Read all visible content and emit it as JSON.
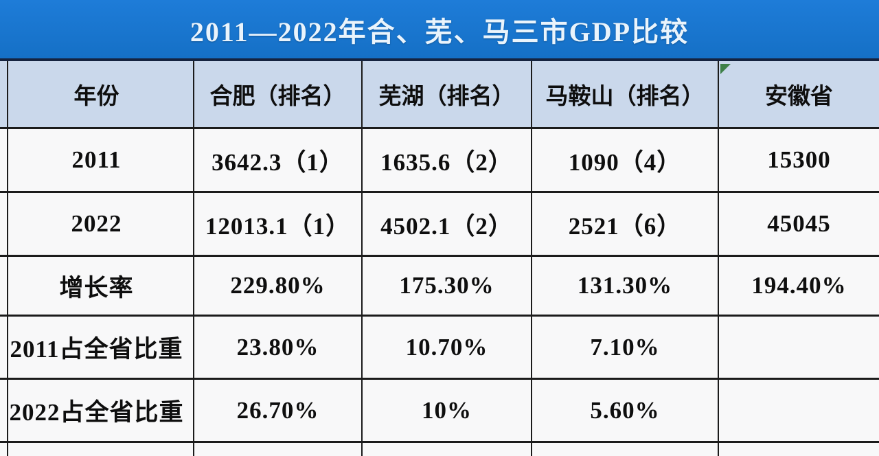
{
  "title": "2011—2022年合、芜、马三市GDP比较",
  "colors": {
    "title_bar_blue": "#1874cd",
    "title_text": "#eaf4fc",
    "navy_divider": "#15233f",
    "header_bg": "#cad8eb",
    "row_bg": "#f8f8f9",
    "grid_border": "#1b1b1b",
    "corner_marker_green": "#3e8048"
  },
  "icons": {
    "corner_marker": "green-corner-triangle"
  },
  "table": {
    "headers": [
      "年份",
      "合肥（排名）",
      "芜湖（排名）",
      "马鞍山（排名）",
      "安徽省"
    ],
    "rows": [
      {
        "cells": [
          "2011",
          "3642.3（1）",
          "1635.6（2）",
          "1090（4）",
          "15300"
        ]
      },
      {
        "cells": [
          "2022",
          "12013.1（1）",
          "4502.1（2）",
          "2521（6）",
          "45045"
        ]
      },
      {
        "cells": [
          "增长率",
          "229.80%",
          "175.30%",
          "131.30%",
          "194.40%"
        ]
      },
      {
        "cells": [
          "2011占全省比重",
          "23.80%",
          "10.70%",
          "7.10%",
          ""
        ]
      },
      {
        "cells": [
          "2022占全省比重",
          "26.70%",
          "10%",
          "5.60%",
          ""
        ]
      }
    ]
  },
  "chart_data": {
    "type": "table",
    "title": "2011—2022年合、芜、马三市GDP比较",
    "columns": [
      "年份",
      "合肥（排名）",
      "芜湖（排名）",
      "马鞍山（排名）",
      "安徽省"
    ],
    "rows": [
      [
        "2011",
        "3642.3（1）",
        "1635.6（2）",
        "1090（4）",
        "15300"
      ],
      [
        "2022",
        "12013.1（1）",
        "4502.1（2）",
        "2521（6）",
        "45045"
      ],
      [
        "增长率",
        "229.80%",
        "175.30%",
        "131.30%",
        "194.40%"
      ],
      [
        "2011占全省比重",
        "23.80%",
        "10.70%",
        "7.10%",
        ""
      ],
      [
        "2022占全省比重",
        "26.70%",
        "10%",
        "5.60%",
        ""
      ]
    ],
    "series_interpretation": {
      "gdp_2011": {
        "合肥": 3642.3,
        "芜湖": 1635.6,
        "马鞍山": 1090,
        "安徽省": 15300
      },
      "rank_2011": {
        "合肥": 1,
        "芜湖": 2,
        "马鞍山": 4
      },
      "gdp_2022": {
        "合肥": 12013.1,
        "芜湖": 4502.1,
        "马鞍山": 2521,
        "安徽省": 45045
      },
      "rank_2022": {
        "合肥": 1,
        "芜湖": 2,
        "马鞍山": 6
      },
      "growth_rate_pct": {
        "合肥": 229.8,
        "芜湖": 175.3,
        "马鞍山": 131.3,
        "安徽省": 194.4
      },
      "share_of_province_2011_pct": {
        "合肥": 23.8,
        "芜湖": 10.7,
        "马鞍山": 7.1
      },
      "share_of_province_2022_pct": {
        "合肥": 26.7,
        "芜湖": 10,
        "马鞍山": 5.6
      }
    }
  }
}
